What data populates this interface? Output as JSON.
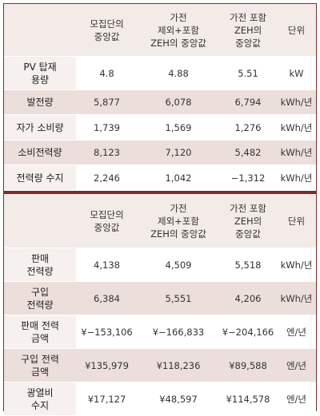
{
  "table1": {
    "headers": [
      "",
      "모집단의\n중앙값",
      "가전\n제외+포함\nZEH의 중앙값",
      "가전 포함\nZEH의\n중앙값",
      "단위"
    ],
    "rows": [
      {
        "label": "PV 탑재\n용량",
        "values": [
          "4.8",
          "4.88",
          "5.51"
        ],
        "unit": "kW"
      },
      {
        "label": "발전량",
        "values": [
          "5,877",
          "6,078",
          "6,794"
        ],
        "unit": "kWh/년"
      },
      {
        "label": "자가 소비량",
        "values": [
          "1,739",
          "1,569",
          "1,276"
        ],
        "unit": "kWh/년"
      },
      {
        "label": "소비전력량",
        "values": [
          "8,123",
          "7,120",
          "5,482"
        ],
        "unit": "kWh/년"
      },
      {
        "label": "전력량 수지",
        "values": [
          "2,246",
          "1,042",
          "−1,312"
        ],
        "unit": "kWh/년"
      }
    ]
  },
  "table2": {
    "headers": [
      "",
      "모집단의\n중앙값",
      "가전\n제외+포함\nZEH의 중앙값",
      "가전 포함\nZEH의\n중앙값",
      "단위"
    ],
    "rows": [
      {
        "label": "판매\n전력량",
        "values": [
          "4,138",
          "4,509",
          "5,518"
        ],
        "unit": "kWh/년"
      },
      {
        "label": "구입\n전력량",
        "values": [
          "6,384",
          "5,551",
          "4,206"
        ],
        "unit": "kWh/년"
      },
      {
        "label": "판매 전력\n금액",
        "values": [
          "¥−153,106",
          "¥−166,833",
          "¥−204,166"
        ],
        "unit": "엔/년"
      },
      {
        "label": "구입 전력\n금액",
        "values": [
          "¥135,979",
          "¥118,236",
          "¥89,588"
        ],
        "unit": "엔/년"
      },
      {
        "label": "광열비\n수지",
        "values": [
          "¥17,127",
          "¥48,597",
          "¥114,578"
        ],
        "unit": "엔/년"
      }
    ]
  }
}
